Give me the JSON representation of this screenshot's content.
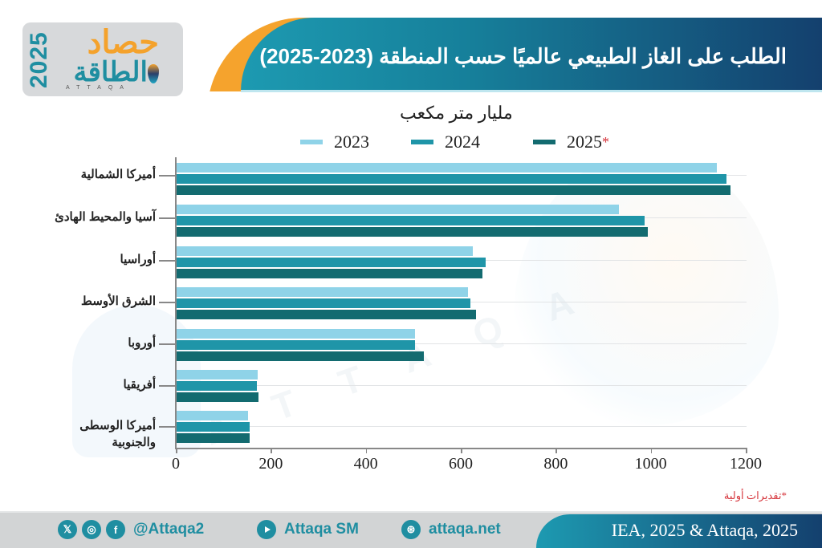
{
  "logo": {
    "year": "2025",
    "top_text": "حصاد",
    "bottom_text": "الطاقة",
    "latin": "ATTAQA"
  },
  "header": {
    "title": "الطلب على الغاز الطبيعي عالميًا حسب المنطقة (2023-2025)"
  },
  "colors": {
    "series_2023": "#8fd3e8",
    "series_2024": "#1f95a8",
    "series_2025": "#136b70",
    "banner_start": "#1d9ab1",
    "banner_end": "#14406e",
    "accent_orange": "#f5a32d",
    "footnote_red": "#d6353c"
  },
  "chart_data": {
    "type": "bar",
    "orientation": "horizontal",
    "title": "الطلب على الغاز الطبيعي عالميًا حسب المنطقة (2023-2025)",
    "unit_label": "مليار متر مكعب",
    "xlabel": "مليار متر مكعب",
    "ylabel": "",
    "xlim": [
      0,
      1200
    ],
    "x_ticks": [
      "0",
      "200",
      "400",
      "600",
      "800",
      "1000",
      "1200"
    ],
    "grid": true,
    "legend_position": "top",
    "categories": [
      "أميركا الشمالية",
      "آسيا والمحيط الهادئ",
      "أوراسيا",
      "الشرق الأوسط",
      "أوروبا",
      "أفريقيا",
      "أميركا الوسطى والجنوبية"
    ],
    "series": [
      {
        "name": "2023",
        "label": "2023",
        "values": [
          1138,
          932,
          624,
          613,
          502,
          171,
          151
        ]
      },
      {
        "name": "2024",
        "label": "2024",
        "values": [
          1157,
          985,
          651,
          618,
          502,
          169,
          154
        ]
      },
      {
        "name": "2025*",
        "label": "2025",
        "values": [
          1166,
          992,
          644,
          630,
          520,
          172,
          154
        ]
      }
    ],
    "annotations": [
      "*تقديرات أولية"
    ]
  },
  "legend": {
    "items": [
      {
        "label": "2023"
      },
      {
        "label": "2024"
      },
      {
        "label": "2025",
        "star": "*"
      }
    ]
  },
  "y_labels": {
    "0": "أميركا الشمالية",
    "1": "آسيا والمحيط الهادئ",
    "2": "أوراسيا",
    "3": "الشرق الأوسط",
    "4": "أوروبا",
    "5": "أفريقيا",
    "6a": "أميركا الوسطى",
    "6b": "والجنوبية"
  },
  "footnote": "*تقديرات أولية",
  "footer": {
    "handle": "@Attaqa2",
    "youtube": "Attaqa SM",
    "website": "attaqa.net",
    "source": "IEA, 2025 & Attaqa, 2025",
    "icons": [
      "x-icon",
      "instagram-icon",
      "facebook-icon",
      "youtube-icon",
      "globe-icon"
    ]
  }
}
